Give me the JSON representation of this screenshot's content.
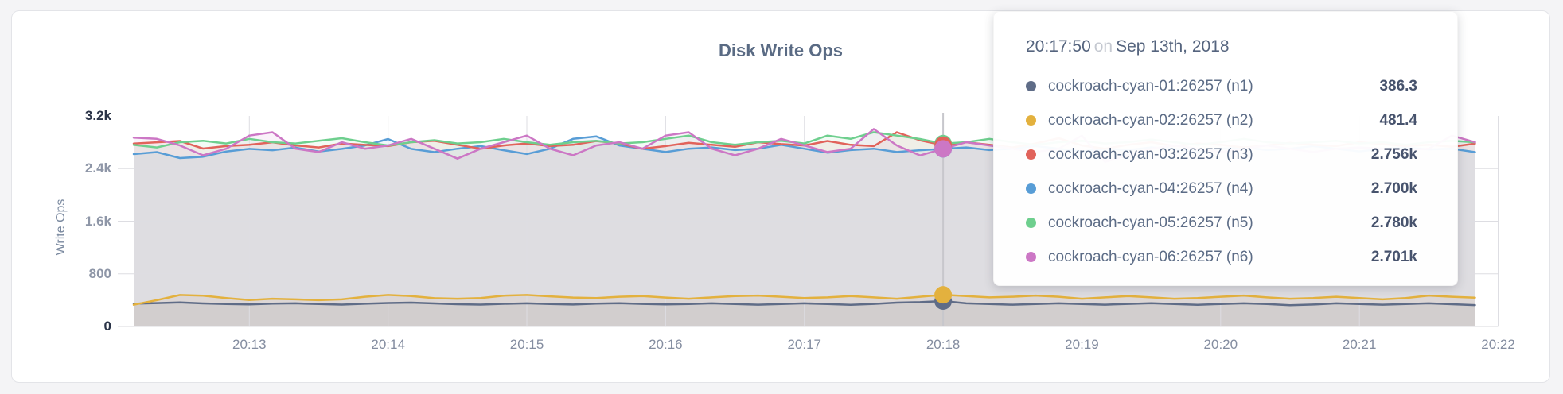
{
  "page": {
    "background": "#f4f4f6"
  },
  "card": {
    "title": "Disk Write Ops"
  },
  "tooltip": {
    "time": "20:17:50",
    "on_word": "on",
    "date": "Sep 13th, 2018",
    "rows": [
      {
        "name": "cockroach-cyan-01:26257 (n1)",
        "value": "386.3",
        "color": "#5f6c87"
      },
      {
        "name": "cockroach-cyan-02:26257 (n2)",
        "value": "481.4",
        "color": "#e3b13e"
      },
      {
        "name": "cockroach-cyan-03:26257 (n3)",
        "value": "2.756k",
        "color": "#e1635b"
      },
      {
        "name": "cockroach-cyan-04:26257 (n4)",
        "value": "2.700k",
        "color": "#589dd6"
      },
      {
        "name": "cockroach-cyan-05:26257 (n5)",
        "value": "2.780k",
        "color": "#6ecf8e"
      },
      {
        "name": "cockroach-cyan-06:26257 (n6)",
        "value": "2.701k",
        "color": "#cc77c5"
      }
    ]
  },
  "chart_data": {
    "type": "area",
    "title": "Disk Write Ops",
    "xlabel": "",
    "ylabel": "Write Ops",
    "ylim": [
      0,
      3200
    ],
    "grid": true,
    "legend_position": "tooltip-top-right",
    "x_axis": {
      "start_time": "20:12:10",
      "interval_sec": 10,
      "points": 59,
      "tick_labels": [
        "20:13",
        "20:14",
        "20:15",
        "20:16",
        "20:17",
        "20:18",
        "20:19",
        "20:20",
        "20:21",
        "20:22"
      ]
    },
    "y_ticks": [
      {
        "label": "0",
        "value": 0,
        "emphasis": true
      },
      {
        "label": "800",
        "value": 800,
        "emphasis": false
      },
      {
        "label": "1.6k",
        "value": 1600,
        "emphasis": false
      },
      {
        "label": "2.4k",
        "value": 2400,
        "emphasis": false
      },
      {
        "label": "3.2k",
        "value": 3200,
        "emphasis": true
      }
    ],
    "hover": {
      "time_label": "20:17:50",
      "index": 35,
      "values": {
        "n1": 386.3,
        "n2": 481.4,
        "n3": 2756,
        "n4": 2700,
        "n5": 2780,
        "n6": 2701
      }
    },
    "series": [
      {
        "name": "cockroach-cyan-01:26257 (n1)",
        "color": "#5f6c87",
        "values": [
          345,
          355,
          365,
          350,
          342,
          335,
          348,
          352,
          340,
          332,
          345,
          356,
          362,
          350,
          338,
          332,
          344,
          352,
          341,
          333,
          346,
          354,
          343,
          334,
          342,
          351,
          340,
          331,
          342,
          352,
          341,
          330,
          343,
          362,
          370,
          386.3,
          352,
          340,
          331,
          342,
          352,
          340,
          331,
          343,
          353,
          341,
          330,
          342,
          351,
          340,
          322,
          333,
          351,
          341,
          331,
          342,
          352,
          338,
          325
        ]
      },
      {
        "name": "cockroach-cyan-02:26257 (n2)",
        "color": "#e3b13e",
        "values": [
          330,
          400,
          478,
          468,
          432,
          402,
          422,
          412,
          400,
          412,
          452,
          478,
          462,
          430,
          422,
          432,
          468,
          478,
          458,
          440,
          432,
          452,
          462,
          440,
          422,
          442,
          462,
          470,
          452,
          432,
          442,
          462,
          442,
          422,
          452,
          481.4,
          462,
          442,
          452,
          470,
          452,
          422,
          442,
          462,
          442,
          422,
          432,
          452,
          470,
          442,
          422,
          432,
          452,
          432,
          412,
          432,
          470,
          452,
          438
        ]
      },
      {
        "name": "cockroach-cyan-03:26257 (n3)",
        "color": "#e1635b",
        "values": [
          2780,
          2800,
          2820,
          2705,
          2742,
          2762,
          2800,
          2752,
          2722,
          2782,
          2760,
          2742,
          2802,
          2822,
          2762,
          2702,
          2752,
          2782,
          2742,
          2762,
          2820,
          2782,
          2702,
          2742,
          2792,
          2762,
          2732,
          2802,
          2772,
          2752,
          2820,
          2762,
          2742,
          2952,
          2830,
          2756,
          2800,
          2762,
          2722,
          2782,
          2862,
          2752,
          2702,
          2762,
          2802,
          2742,
          2782,
          2762,
          2722,
          2752,
          2792,
          2762,
          2742,
          2802,
          2772,
          2742,
          2762,
          2732,
          2780
        ]
      },
      {
        "name": "cockroach-cyan-04:26257 (n4)",
        "color": "#589dd6",
        "values": [
          2620,
          2650,
          2560,
          2580,
          2660,
          2700,
          2680,
          2720,
          2660,
          2700,
          2752,
          2850,
          2700,
          2650,
          2702,
          2742,
          2680,
          2622,
          2702,
          2852,
          2890,
          2752,
          2702,
          2652,
          2702,
          2722,
          2682,
          2702,
          2762,
          2702,
          2642,
          2682,
          2702,
          2652,
          2680,
          2700,
          2722,
          2682,
          2702,
          2742,
          2702,
          2662,
          2702,
          2682,
          2722,
          2702,
          2652,
          2702,
          2722,
          2682,
          2702,
          2742,
          2702,
          2662,
          2702,
          2722,
          2692,
          2702,
          2650
        ]
      },
      {
        "name": "cockroach-cyan-05:26257 (n5)",
        "color": "#6ecf8e",
        "values": [
          2760,
          2722,
          2802,
          2822,
          2782,
          2852,
          2802,
          2782,
          2822,
          2862,
          2802,
          2752,
          2802,
          2832,
          2782,
          2802,
          2852,
          2802,
          2762,
          2802,
          2822,
          2782,
          2802,
          2852,
          2902,
          2802,
          2762,
          2802,
          2822,
          2782,
          2902,
          2852,
          2952,
          2902,
          2850,
          2780,
          2802,
          2852,
          2802,
          2762,
          2802,
          2822,
          2782,
          2802,
          2842,
          2802,
          2762,
          2802,
          2852,
          2802,
          2782,
          2802,
          2822,
          2782,
          2802,
          2762,
          2802,
          2822,
          2800
        ]
      },
      {
        "name": "cockroach-cyan-06:26257 (n6)",
        "color": "#cc77c5",
        "values": [
          2870,
          2852,
          2752,
          2602,
          2702,
          2902,
          2952,
          2702,
          2652,
          2802,
          2702,
          2752,
          2852,
          2702,
          2552,
          2702,
          2802,
          2902,
          2702,
          2602,
          2752,
          2802,
          2702,
          2902,
          2952,
          2702,
          2602,
          2702,
          2852,
          2752,
          2652,
          2702,
          3002,
          2752,
          2600,
          2701,
          2802,
          2752,
          2702,
          2652,
          2702,
          2902,
          2502,
          2602,
          2702,
          2752,
          2702,
          2652,
          2702,
          2752,
          2702,
          2652,
          2702,
          2722,
          2702,
          2682,
          2702,
          2902,
          2800
        ]
      }
    ]
  }
}
